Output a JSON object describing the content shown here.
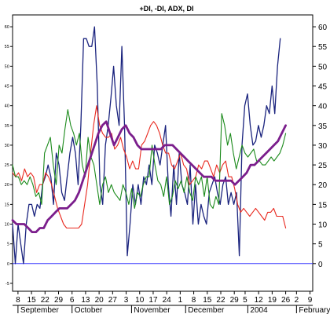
{
  "chart_data": {
    "type": "line",
    "title": "+DI, -DI, ADX, DI",
    "xlabel": "",
    "ylabel": "",
    "ylim": [
      -7,
      63
    ],
    "left_ticks": [
      "-5",
      "0",
      "5",
      "10",
      "15",
      "20",
      "25",
      "30",
      "35",
      "40",
      "45",
      "50",
      "55",
      "60"
    ],
    "left_tick_values": [
      -5,
      0,
      5,
      10,
      15,
      20,
      25,
      30,
      35,
      40,
      45,
      50,
      55,
      60
    ],
    "right_ticks": [
      "0",
      "5",
      "10",
      "15",
      "20",
      "25",
      "30",
      "35",
      "40",
      "45",
      "50",
      "55",
      "60"
    ],
    "right_tick_values": [
      0,
      5,
      10,
      15,
      20,
      25,
      30,
      35,
      40,
      45,
      50,
      55,
      60
    ],
    "x_day_ticks": [
      {
        "label": "8",
        "i": 2
      },
      {
        "label": "15",
        "i": 7
      },
      {
        "label": "22",
        "i": 12
      },
      {
        "label": "29",
        "i": 17
      },
      {
        "label": "6",
        "i": 22
      },
      {
        "label": "13",
        "i": 27
      },
      {
        "label": "20",
        "i": 32
      },
      {
        "label": "27",
        "i": 37
      },
      {
        "label": "3",
        "i": 42
      },
      {
        "label": "10",
        "i": 47
      },
      {
        "label": "17",
        "i": 52
      },
      {
        "label": "24",
        "i": 57
      },
      {
        "label": "1",
        "i": 62
      },
      {
        "label": "8",
        "i": 67
      },
      {
        "label": "15",
        "i": 72
      },
      {
        "label": "22",
        "i": 77
      },
      {
        "label": "29",
        "i": 82
      },
      {
        "label": "5",
        "i": 86
      },
      {
        "label": "12",
        "i": 91
      },
      {
        "label": "19",
        "i": 96
      },
      {
        "label": "26",
        "i": 101
      },
      {
        "label": "2",
        "i": 105
      },
      {
        "label": "9",
        "i": 110
      }
    ],
    "x_month_labels": [
      {
        "label": "September",
        "i": 2
      },
      {
        "label": "October",
        "i": 22
      },
      {
        "label": "November",
        "i": 44
      },
      {
        "label": "December",
        "i": 64
      },
      {
        "label": "2004",
        "i": 87
      },
      {
        "label": "February",
        "i": 105
      }
    ],
    "x_index_range": [
      0,
      111
    ],
    "series": [
      {
        "color": "#1a237e",
        "values": [
          10,
          0,
          10,
          5,
          0,
          10,
          15,
          15,
          12,
          15,
          14,
          20,
          22,
          25,
          22,
          15,
          28,
          25,
          18,
          16,
          22,
          28,
          32,
          28,
          20,
          35,
          57,
          57,
          55,
          55,
          60,
          45,
          20,
          15,
          30,
          35,
          42,
          50,
          40,
          35,
          55,
          35,
          2,
          10,
          20,
          15,
          20,
          15,
          22,
          20,
          25,
          20,
          30,
          28,
          25,
          30,
          35,
          20,
          12,
          25,
          15,
          28,
          20,
          18,
          15,
          25,
          10,
          20,
          10,
          15,
          12,
          10,
          18,
          20,
          22,
          18,
          15,
          20,
          22,
          15,
          18,
          15,
          18,
          2,
          30,
          40,
          43,
          35,
          30,
          31,
          35,
          32,
          35,
          40,
          38,
          45,
          38,
          50,
          57
        ]
      },
      {
        "color": "#e8281e",
        "values": [
          23,
          22,
          23,
          21,
          24,
          22,
          23,
          22,
          18,
          20,
          20,
          23,
          22,
          20,
          17,
          14,
          12,
          10,
          9,
          9,
          9,
          9,
          9,
          10,
          15,
          20,
          28,
          35,
          40,
          35,
          33,
          32,
          32,
          33,
          29,
          30,
          32,
          29,
          27,
          24,
          26,
          24,
          24,
          30,
          31,
          33,
          35,
          36,
          35,
          33,
          30,
          28,
          28,
          25,
          24,
          26,
          28,
          25,
          24,
          20,
          21,
          22,
          25,
          24,
          26,
          26,
          24,
          22,
          25,
          23,
          25,
          26,
          22,
          22,
          19,
          15,
          13,
          14,
          13,
          12,
          13,
          14,
          13,
          12,
          11,
          13,
          13,
          14,
          12,
          12,
          12,
          9
        ]
      },
      {
        "color": "#1b8a1b",
        "values": [
          25,
          22,
          22,
          20,
          21,
          20,
          22,
          20,
          17,
          18,
          15,
          28,
          30,
          32,
          25,
          20,
          30,
          28,
          34,
          39,
          35,
          33,
          30,
          33,
          25,
          22,
          32,
          27,
          25,
          20,
          15,
          20,
          22,
          18,
          20,
          18,
          17,
          16,
          20,
          18,
          15,
          19,
          14,
          18,
          17,
          20,
          22,
          22,
          30,
          25,
          21,
          20,
          17,
          22,
          15,
          17,
          21,
          19,
          21,
          18,
          22,
          18,
          16,
          22,
          20,
          22,
          17,
          22,
          15,
          14,
          17,
          15,
          38,
          35,
          30,
          33,
          28,
          24,
          27,
          30,
          28,
          27,
          28,
          29,
          26,
          26,
          25,
          25,
          26,
          27,
          26,
          27,
          28,
          30,
          33
        ]
      },
      {
        "color": "#7b1e8c",
        "values": [
          11,
          10,
          10,
          10,
          9,
          8,
          8,
          9,
          9,
          11,
          12,
          13,
          14,
          14,
          14,
          15,
          16,
          18,
          21,
          24,
          27,
          30,
          33,
          35,
          36,
          33,
          30,
          32,
          34,
          35,
          33,
          32,
          30,
          29,
          29,
          29,
          29,
          29,
          29,
          30,
          30,
          30,
          29,
          28,
          27,
          26,
          25,
          24,
          23,
          22,
          22,
          22,
          21,
          21,
          21,
          21,
          21,
          20,
          21,
          22,
          23,
          25,
          25,
          26,
          27,
          28,
          29,
          30,
          31,
          33,
          35
        ]
      }
    ],
    "series_spans": [
      [
        0,
        99
      ],
      [
        0,
        101
      ],
      [
        0,
        101
      ],
      [
        0,
        101
      ]
    ]
  }
}
